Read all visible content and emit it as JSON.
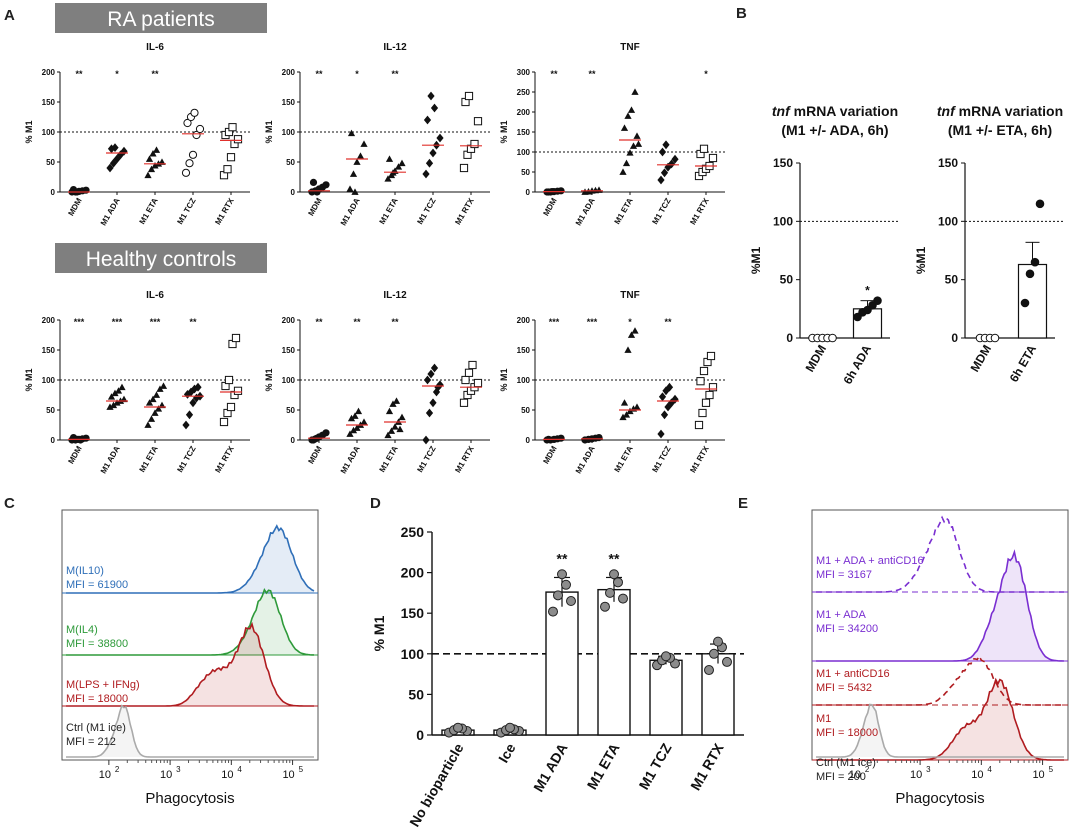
{
  "panel_letters": {
    "a": "A",
    "b": "B",
    "c": "C",
    "d": "D",
    "e": "E"
  },
  "banners": {
    "ra": "RA patients",
    "hc": "Healthy controls"
  },
  "colors": {
    "red": "#e0302c",
    "blue": "#2f6fb8",
    "green": "#2e9a3a",
    "darkred": "#b01c20",
    "purple": "#7a2fd1",
    "gray": "#aaaaaa"
  },
  "chart_data": [
    {
      "id": "ra_il6",
      "type": "scatter",
      "group": "RA patients",
      "title": "IL-6",
      "ylabel": "% M1",
      "ylim": [
        0,
        200
      ],
      "yticks": [
        0,
        50,
        100,
        150,
        200
      ],
      "ref_line": 100,
      "categories": [
        "MDM",
        "M1 ADA",
        "M1 ETA",
        "M1 TCZ",
        "M1 RTX"
      ],
      "markers": [
        "circle",
        "diamond",
        "triangle",
        "circle-open",
        "square-open"
      ],
      "medians": [
        0,
        65,
        47,
        97,
        86
      ],
      "significance": [
        "**",
        "*",
        "**",
        "",
        ""
      ],
      "points": [
        [
          0,
          0,
          1,
          2,
          3,
          4,
          0
        ],
        [
          40,
          48,
          55,
          62,
          68,
          72,
          74
        ],
        [
          28,
          38,
          44,
          47,
          50,
          55,
          64,
          70
        ],
        [
          32,
          48,
          62,
          95,
          105,
          115,
          125,
          132
        ],
        [
          28,
          38,
          58,
          80,
          88,
          95,
          100,
          108
        ]
      ]
    },
    {
      "id": "ra_il12",
      "type": "scatter",
      "group": "RA patients",
      "title": "IL-12",
      "ylabel": "% M1",
      "ylim": [
        0,
        200
      ],
      "yticks": [
        0,
        50,
        100,
        150,
        200
      ],
      "ref_line": 100,
      "categories": [
        "MDM",
        "M1 ADA",
        "M1 ETA",
        "M1 TCZ",
        "M1 RTX"
      ],
      "markers": [
        "circle",
        "triangle",
        "triangle",
        "diamond",
        "square-open"
      ],
      "medians": [
        2,
        55,
        33,
        78,
        77
      ],
      "significance": [
        "**",
        "*",
        "**",
        "",
        ""
      ],
      "points": [
        [
          0,
          2,
          5,
          8,
          12,
          16,
          0
        ],
        [
          5,
          30,
          50,
          60,
          80,
          98,
          0
        ],
        [
          22,
          28,
          35,
          42,
          48,
          55,
          32
        ],
        [
          30,
          48,
          65,
          78,
          90,
          120,
          160,
          140
        ],
        [
          40,
          62,
          72,
          80,
          118,
          150,
          160
        ]
      ]
    },
    {
      "id": "ra_tnf",
      "type": "scatter",
      "group": "RA patients",
      "title": "TNF",
      "ylabel": "% M1",
      "ylim": [
        0,
        300
      ],
      "yticks": [
        0,
        50,
        100,
        150,
        200,
        250,
        300
      ],
      "ref_line": 100,
      "categories": [
        "MDM",
        "M1 ADA",
        "M1 ETA",
        "M1 TCZ",
        "M1 RTX"
      ],
      "markers": [
        "circle",
        "triangle",
        "triangle",
        "diamond",
        "square-open"
      ],
      "medians": [
        1,
        3,
        130,
        68,
        65
      ],
      "significance": [
        "**",
        "**",
        "",
        "",
        "*"
      ],
      "points": [
        [
          0,
          0,
          1,
          2,
          3,
          0,
          1
        ],
        [
          0,
          1,
          3,
          4,
          5
        ],
        [
          50,
          72,
          98,
          115,
          140,
          160,
          190,
          205,
          250,
          120
        ],
        [
          30,
          48,
          62,
          70,
          82,
          100,
          118
        ],
        [
          40,
          50,
          58,
          65,
          85,
          95,
          108
        ]
      ]
    },
    {
      "id": "hc_il6",
      "type": "scatter",
      "group": "Healthy controls",
      "title": "IL-6",
      "ylabel": "% M1",
      "ylim": [
        0,
        200
      ],
      "yticks": [
        0,
        50,
        100,
        150,
        200
      ],
      "ref_line": 100,
      "categories": [
        "MDM",
        "M1 ADA",
        "M1 ETA",
        "M1 TCZ",
        "M1 RTX"
      ],
      "markers": [
        "circle",
        "triangle",
        "triangle",
        "diamond",
        "square-open"
      ],
      "medians": [
        1,
        65,
        55,
        73,
        80
      ],
      "significance": [
        "***",
        "***",
        "***",
        "**",
        ""
      ],
      "points": [
        [
          0,
          0,
          1,
          2,
          3,
          4,
          1,
          0
        ],
        [
          55,
          58,
          62,
          65,
          68,
          72,
          78,
          82,
          88
        ],
        [
          25,
          35,
          45,
          52,
          58,
          62,
          68,
          75,
          85,
          90
        ],
        [
          25,
          42,
          62,
          70,
          73,
          76,
          80,
          85,
          88
        ],
        [
          30,
          45,
          55,
          75,
          82,
          90,
          100,
          160,
          170
        ]
      ]
    },
    {
      "id": "hc_il12",
      "type": "scatter",
      "group": "Healthy controls",
      "title": "IL-12",
      "ylabel": "% M1",
      "ylim": [
        0,
        200
      ],
      "yticks": [
        0,
        50,
        100,
        150,
        200
      ],
      "ref_line": 100,
      "categories": [
        "MDM",
        "M1 ADA",
        "M1 ETA",
        "M1 TCZ",
        "M1 RTX"
      ],
      "markers": [
        "circle",
        "triangle",
        "triangle",
        "diamond",
        "square-open"
      ],
      "medians": [
        3,
        25,
        30,
        90,
        88
      ],
      "significance": [
        "**",
        "**",
        "**",
        "",
        ""
      ],
      "points": [
        [
          0,
          2,
          5,
          8,
          12,
          0,
          3
        ],
        [
          10,
          16,
          20,
          25,
          30,
          36,
          40,
          48
        ],
        [
          8,
          15,
          22,
          30,
          38,
          48,
          60,
          65,
          18
        ],
        [
          0,
          45,
          62,
          80,
          92,
          100,
          110,
          120,
          88
        ],
        [
          62,
          75,
          82,
          88,
          95,
          100,
          112,
          125
        ]
      ]
    },
    {
      "id": "hc_tnf",
      "type": "scatter",
      "group": "Healthy controls",
      "title": "TNF",
      "ylabel": "% M1",
      "ylim": [
        0,
        200
      ],
      "yticks": [
        0,
        50,
        100,
        150,
        200
      ],
      "ref_line": 100,
      "categories": [
        "MDM",
        "M1 ADA",
        "M1 ETA",
        "M1 TCZ",
        "M1 RTX"
      ],
      "markers": [
        "circle",
        "circle",
        "triangle",
        "diamond",
        "square-open"
      ],
      "medians": [
        1,
        2,
        50,
        65,
        85
      ],
      "significance": [
        "***",
        "***",
        "*",
        "**",
        ""
      ],
      "points": [
        [
          0,
          0,
          1,
          2,
          3,
          1
        ],
        [
          0,
          1,
          2,
          3,
          4
        ],
        [
          38,
          42,
          48,
          52,
          55,
          62,
          150,
          175,
          182
        ],
        [
          10,
          42,
          55,
          62,
          68,
          72,
          82,
          88
        ],
        [
          25,
          45,
          62,
          75,
          88,
          98,
          115,
          130,
          140
        ]
      ]
    },
    {
      "id": "b_ada",
      "type": "bar",
      "title_italic": "tnf",
      "title_rest": " mRNA variation",
      "subtitle": "(M1 +/- ADA, 6h)",
      "ylabel": "%M1",
      "ylim": [
        0,
        150
      ],
      "yticks": [
        0,
        50,
        100,
        150
      ],
      "ref_line": 100,
      "categories": [
        "MDM",
        "6h ADA"
      ],
      "values": [
        0,
        25
      ],
      "errors": [
        0,
        7
      ],
      "significance": [
        "",
        "*"
      ],
      "points": [
        [
          0,
          0,
          0,
          0,
          0
        ],
        [
          18,
          22,
          24,
          28,
          32
        ]
      ]
    },
    {
      "id": "b_eta",
      "type": "bar",
      "title_italic": "tnf",
      "title_rest": " mRNA variation",
      "subtitle": "(M1 +/- ETA, 6h)",
      "ylabel": "%M1",
      "ylim": [
        0,
        150
      ],
      "yticks": [
        0,
        50,
        100,
        150
      ],
      "ref_line": 100,
      "categories": [
        "MDM",
        "6h ETA"
      ],
      "values": [
        0,
        63
      ],
      "errors": [
        0,
        19
      ],
      "significance": [
        "",
        ""
      ],
      "points": [
        [
          0,
          0,
          0,
          0
        ],
        [
          30,
          55,
          65,
          115
        ]
      ]
    },
    {
      "id": "d_phago",
      "type": "bar",
      "ylabel": "% M1",
      "ylim": [
        0,
        250
      ],
      "yticks": [
        0,
        50,
        100,
        150,
        200,
        250
      ],
      "ref_line": 100,
      "categories": [
        "No bioparticle",
        "Ice",
        "M1 ADA",
        "M1 ETA",
        "M1 TCZ",
        "M1 RTX"
      ],
      "values": [
        6,
        6,
        176,
        179,
        92,
        100
      ],
      "errors": [
        3,
        3,
        18,
        15,
        5,
        12
      ],
      "significance": [
        "",
        "",
        "**",
        "**",
        "",
        ""
      ],
      "points": [
        [
          3,
          5,
          6,
          8,
          9
        ],
        [
          3,
          5,
          6,
          7,
          9
        ],
        [
          152,
          165,
          172,
          185,
          198
        ],
        [
          158,
          168,
          175,
          188,
          198
        ],
        [
          86,
          88,
          92,
          95,
          97
        ],
        [
          80,
          90,
          100,
          108,
          115
        ]
      ]
    },
    {
      "id": "c_flow",
      "type": "histogram",
      "xlabel": "Phagocytosis",
      "xlog": true,
      "xticks": [
        "10",
        "10",
        "10",
        "10"
      ],
      "xexp": [
        "2",
        "3",
        "4",
        "5"
      ],
      "labels": [
        {
          "line1": "M(IL10)",
          "line2": "MFI = 61900",
          "color": "#2f6fb8"
        },
        {
          "line1": "M(IL4)",
          "line2": "MFI = 38800",
          "color": "#2e9a3a"
        },
        {
          "line1": "M(LPS + IFNg)",
          "line2": "MFI = 18000",
          "color": "#b01c20"
        },
        {
          "line1": "Ctrl (M1 ice)",
          "line2": "MFI = 212",
          "color": "#222222"
        }
      ]
    },
    {
      "id": "e_flow",
      "type": "histogram",
      "xlabel": "Phagocytosis",
      "xlog": true,
      "xticks": [
        "10",
        "10",
        "10",
        "10"
      ],
      "xexp": [
        "2",
        "3",
        "4",
        "5"
      ],
      "labels": [
        {
          "line1": "M1 + ADA + antiCD16",
          "line2": "MFI = 3167",
          "color": "#7a2fd1"
        },
        {
          "line1": "M1 + ADA",
          "line2": "MFI = 34200",
          "color": "#7a2fd1"
        },
        {
          "line1": "M1 + antiCD16",
          "line2": "MFI = 5432",
          "color": "#b01c20"
        },
        {
          "line1": "M1",
          "line2": "MFI = 18000",
          "color": "#b01c20"
        },
        {
          "line1": "Ctrl (M1 ice)",
          "line2": "MFI = 200",
          "color": "#222222"
        }
      ]
    }
  ]
}
